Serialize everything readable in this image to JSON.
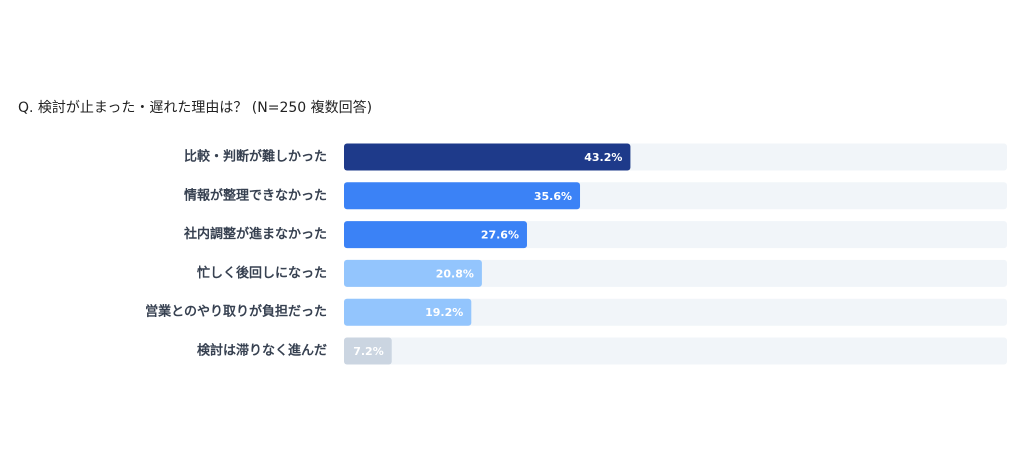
{
  "chart_data": {
    "type": "bar",
    "orientation": "horizontal",
    "title": "Q. 検討が止まった・遅れた理由は？ (N=250 複数回答)",
    "categories": [
      "比較・判断が難しかった",
      "情報が整理できなかった",
      "社内調整が進まなかった",
      "忙しく後回しになった",
      "営業とのやり取りが負担だった",
      "検討は滞りなく進んだ"
    ],
    "values": [
      43.2,
      35.6,
      27.6,
      20.8,
      19.2,
      7.2
    ],
    "value_labels": [
      "43.2%",
      "35.6%",
      "27.6%",
      "20.8%",
      "19.2%",
      "7.2%"
    ],
    "colors": [
      "#1e3a8a",
      "#3b82f6",
      "#3b82f6",
      "#93c5fd",
      "#93c5fd",
      "#cbd5e1"
    ],
    "track_color": "#f1f5f9",
    "xlim": [
      0,
      100
    ]
  }
}
